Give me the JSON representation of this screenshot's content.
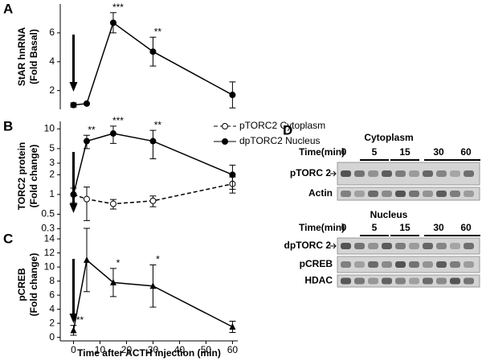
{
  "chart_data": [
    {
      "type": "line",
      "panel": "A",
      "y_label": [
        "StAR hnRNA",
        "(Fold Basal)"
      ],
      "x": [
        0,
        5,
        15,
        30,
        60
      ],
      "xlim": [
        -5,
        62
      ],
      "ylim": [
        0.7,
        8
      ],
      "yticks": [
        2,
        4,
        6
      ],
      "series": [
        {
          "color": "#000000",
          "marker": "circle",
          "dash": false,
          "values": [
            1,
            1.1,
            6.7,
            4.7,
            1.7
          ],
          "errors": [
            0.15,
            0,
            0.7,
            1,
            0.9
          ],
          "significance": [
            null,
            null,
            "***",
            "**",
            null
          ]
        }
      ]
    },
    {
      "type": "line",
      "panel": "B",
      "y_label": [
        "TORC2 protein",
        "(Fold change)"
      ],
      "log_y": true,
      "legend": "upper right",
      "x": [
        0,
        5,
        15,
        30,
        60
      ],
      "xlim": [
        -5,
        62
      ],
      "ylim": [
        0.28,
        13
      ],
      "yticks": [
        0.3,
        0.5,
        1,
        2,
        3,
        5,
        10
      ],
      "series": [
        {
          "name": "pTORC2 Cytoplasm",
          "color": "#000000",
          "marker": "open-circle",
          "dash": true,
          "values": [
            1,
            0.85,
            0.72,
            0.8,
            1.45
          ],
          "errors": [
            0.25,
            0.45,
            0.12,
            0.15,
            0.4
          ],
          "significance": [
            null,
            null,
            null,
            null,
            null
          ]
        },
        {
          "name": "dpTORC2 Nucleus",
          "color": "#000000",
          "marker": "circle",
          "dash": false,
          "values": [
            1,
            6.5,
            8.5,
            6.5,
            2
          ],
          "errors": [
            0,
            1.5,
            2.5,
            3,
            0.8
          ],
          "significance": [
            null,
            "**",
            "***",
            "**",
            null
          ]
        }
      ]
    },
    {
      "type": "line",
      "panel": "C",
      "y_label": [
        "pCREB",
        "(Fold change)"
      ],
      "x_label": "Time after ACTH injection (min)",
      "x": [
        0,
        5,
        15,
        30,
        60
      ],
      "xlim": [
        -5,
        62
      ],
      "ylim": [
        -0.5,
        15.5
      ],
      "yticks": [
        0,
        2,
        4,
        6,
        8,
        10,
        12,
        14
      ],
      "xticks": [
        0,
        10,
        20,
        30,
        40,
        50,
        60
      ],
      "series": [
        {
          "color": "#000000",
          "marker": "triangle",
          "dash": false,
          "values": [
            1,
            11,
            7.8,
            7.3,
            1.5
          ],
          "errors": [
            0.7,
            4.5,
            2,
            3,
            0.8
          ],
          "significance": [
            "**",
            null,
            "*",
            "*",
            null
          ]
        }
      ]
    }
  ],
  "blot": {
    "panel": "D",
    "cytoplasm": {
      "title": "Cytoplasm",
      "time_label": "Time(min)",
      "times": [
        "0",
        "5",
        "15",
        "30",
        "60"
      ],
      "rows": [
        "pTORC 2",
        "Actin"
      ]
    },
    "nucleus": {
      "title": "Nucleus",
      "time_label": "Time(min)",
      "times": [
        "0",
        "5",
        "15",
        "30",
        "60"
      ],
      "rows": [
        "dpTORC 2",
        "pCREB",
        "HDAC"
      ]
    }
  }
}
